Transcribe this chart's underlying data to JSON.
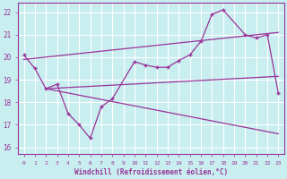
{
  "xlabel": "Windchill (Refroidissement éolien,°C)",
  "bg_color": "#c8eef0",
  "line_color": "#993399",
  "grid_color": "#ffffff",
  "xlim": [
    -0.5,
    23.5
  ],
  "ylim": [
    15.7,
    22.4
  ],
  "yticks": [
    16,
    17,
    18,
    19,
    20,
    21,
    22
  ],
  "xticks": [
    0,
    1,
    2,
    3,
    4,
    5,
    6,
    7,
    8,
    9,
    10,
    11,
    12,
    13,
    14,
    15,
    16,
    17,
    18,
    19,
    20,
    21,
    22,
    23
  ],
  "main_x": [
    0,
    1,
    2,
    3,
    4,
    5,
    6,
    7,
    8,
    10,
    11,
    12,
    13,
    14,
    15,
    16,
    17,
    18,
    20,
    21,
    22,
    23
  ],
  "main_y": [
    20.1,
    19.5,
    18.6,
    18.8,
    17.5,
    17.0,
    16.4,
    17.8,
    18.15,
    19.8,
    19.65,
    19.55,
    19.55,
    19.85,
    20.1,
    20.7,
    21.9,
    22.1,
    21.0,
    20.85,
    21.0,
    18.4
  ],
  "upper_line_x": [
    0,
    23
  ],
  "upper_line_y": [
    19.9,
    21.1
  ],
  "mid_line_x": [
    2,
    23
  ],
  "mid_line_y": [
    18.6,
    19.15
  ],
  "lower_line_x": [
    2,
    23
  ],
  "lower_line_y": [
    18.6,
    16.6
  ]
}
